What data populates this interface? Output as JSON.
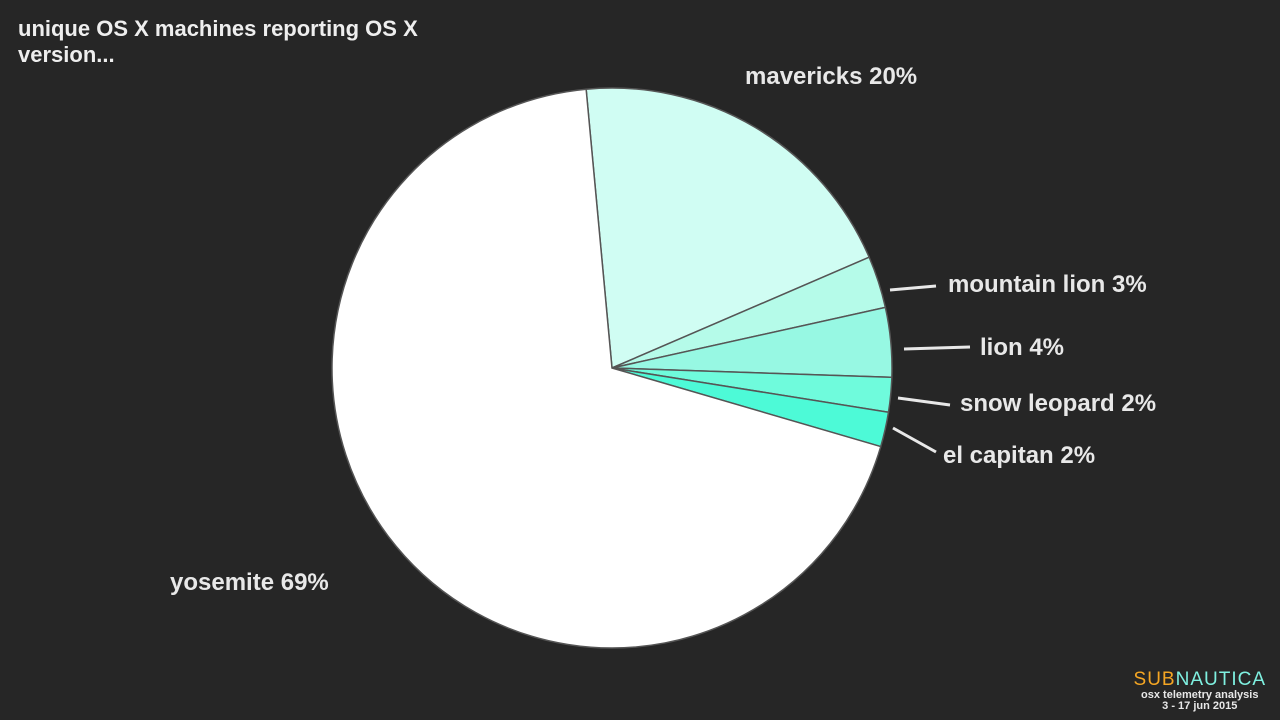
{
  "chart_data": {
    "type": "pie",
    "title": "unique OS X machines reporting OS X version...",
    "slices": [
      {
        "label": "mavericks 20%",
        "name": "mavericks",
        "value": 20,
        "color": "#d0fdf3"
      },
      {
        "label": "mountain lion 3%",
        "name": "mountain lion",
        "value": 3,
        "color": "#b5fbe9"
      },
      {
        "label": "lion 4%",
        "name": "lion",
        "value": 4,
        "color": "#97f8e3"
      },
      {
        "label": "snow leopard 2%",
        "name": "snow leopard",
        "value": 2,
        "color": "#6ffbdc"
      },
      {
        "label": "el capitan 2%",
        "name": "el capitan",
        "value": 2,
        "color": "#4dfad7"
      },
      {
        "label": "yosemite 69%",
        "name": "yosemite",
        "value": 69,
        "color": "#ffffff"
      }
    ]
  },
  "logo": {
    "sub": "SUB",
    "nautica": "NAUTICA",
    "line1": "osx telemetry analysis",
    "line2": "3 - 17 jun 2015"
  }
}
